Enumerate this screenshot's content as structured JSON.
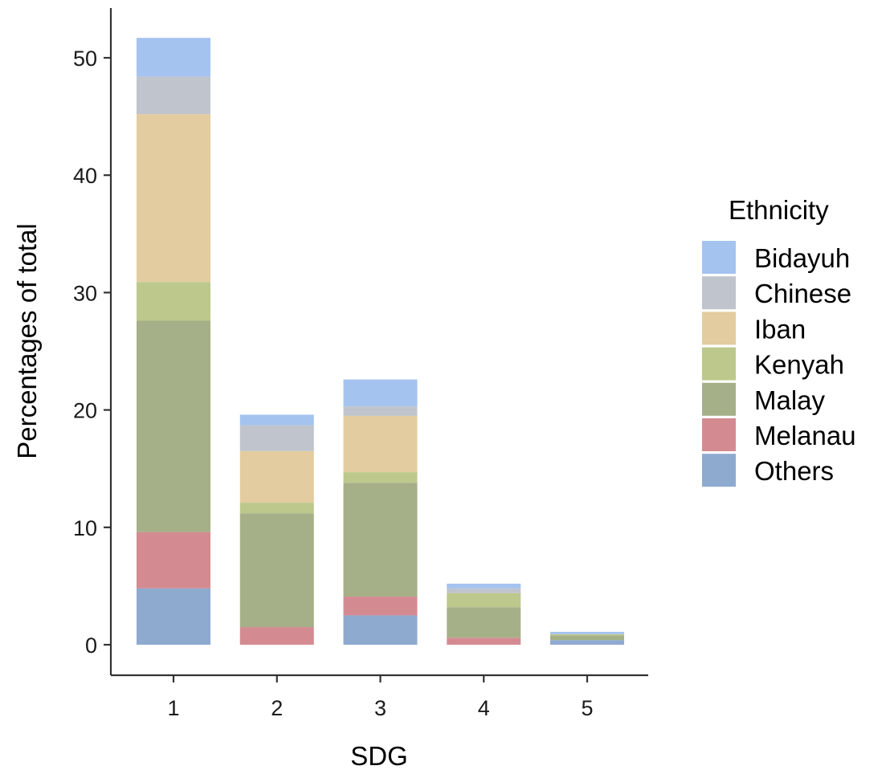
{
  "chart_data": {
    "type": "bar",
    "stacked": true,
    "xlabel": "SDG",
    "ylabel": "Percentages of total",
    "categories": [
      "1",
      "2",
      "3",
      "4",
      "5"
    ],
    "ylim": [
      0,
      55
    ],
    "yticks": [
      "0",
      "10",
      "20",
      "30",
      "40",
      "50"
    ],
    "grid": false,
    "legend": {
      "title": "Ethnicity",
      "position": "right"
    },
    "series": [
      {
        "name": "Others",
        "color": "#8eaacf",
        "values": [
          4.8,
          0.0,
          2.5,
          0.0,
          0.4
        ]
      },
      {
        "name": "Melanau",
        "color": "#d38b91",
        "values": [
          4.8,
          1.5,
          1.6,
          0.6,
          0.0
        ]
      },
      {
        "name": "Malay",
        "color": "#a5b088",
        "values": [
          18.0,
          9.7,
          9.7,
          2.6,
          0.4
        ]
      },
      {
        "name": "Kenyah",
        "color": "#bcc88c",
        "values": [
          3.3,
          0.9,
          0.9,
          1.2,
          0.1
        ]
      },
      {
        "name": "Iban",
        "color": "#e3cc9f",
        "values": [
          14.3,
          4.4,
          4.8,
          0.0,
          0.0
        ]
      },
      {
        "name": "Chinese",
        "color": "#c0c4cc",
        "values": [
          3.2,
          2.2,
          0.8,
          0.4,
          0.0
        ]
      },
      {
        "name": "Bidayuh",
        "color": "#a5c3ef",
        "values": [
          3.3,
          0.9,
          2.3,
          0.4,
          0.2
        ]
      }
    ],
    "legend_order": [
      "Bidayuh",
      "Chinese",
      "Iban",
      "Kenyah",
      "Malay",
      "Melanau",
      "Others"
    ]
  }
}
